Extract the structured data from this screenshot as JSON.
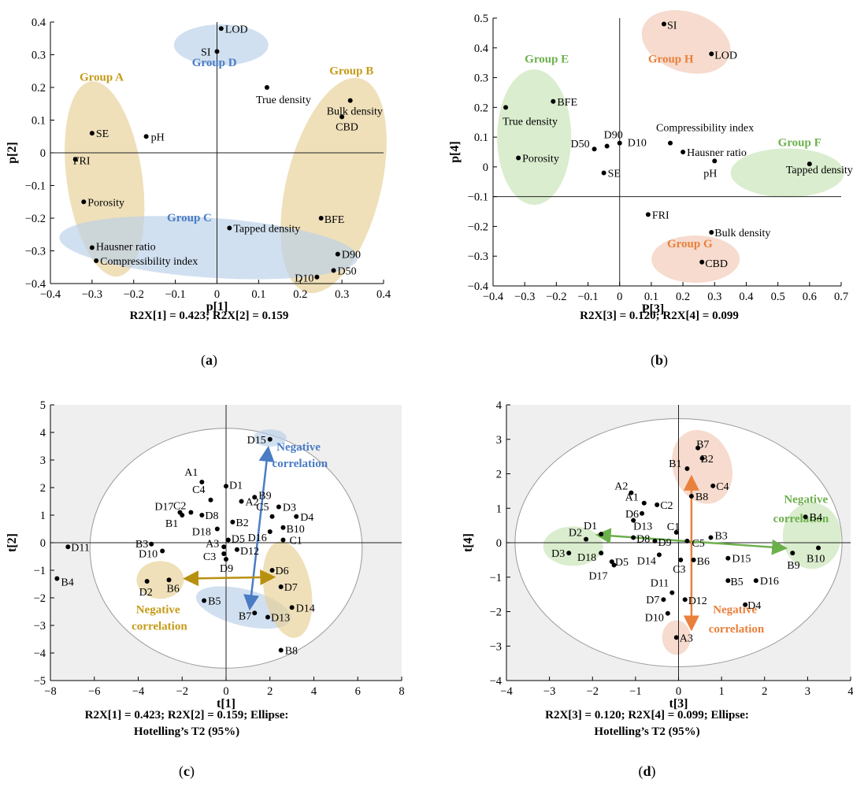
{
  "colors": {
    "tan": "#e6cf95",
    "tan_text": "#c59a17",
    "tan_arrow": "#b8900f",
    "blue": "#b9cfe8",
    "blue_text": "#4a7cc4",
    "blue_arrow": "#4a7cc4",
    "green": "#c6e3b4",
    "green_text": "#6cb04c",
    "green_arrow": "#6cb04c",
    "orange": "#f1c7b4",
    "orange_text": "#e9803c",
    "orange_arrow": "#e9803c",
    "shade": "#efefef"
  },
  "chart_data": [
    {
      "panel": "a",
      "type": "scatter",
      "xlabel": "p[1]",
      "ylabel": "p[2]",
      "xlim": [
        -0.4,
        0.4
      ],
      "ylim": [
        -0.4,
        0.4
      ],
      "xticks": [
        "−0.4",
        "−0.3",
        "−0.2",
        "−0.1",
        "0",
        "0.1",
        "0.2",
        "0.3",
        "0.4"
      ],
      "yticks": [
        "−0.4",
        "−0.3",
        "−0.2",
        "−0.1",
        "0",
        "0.1",
        "0.2",
        "0.3",
        "0.4"
      ],
      "caption": "R2X[1] = 0.423; R2X[2] = 0.159",
      "sublabel": "a",
      "points": [
        {
          "label": "LOD",
          "x": 0.01,
          "y": 0.38
        },
        {
          "label": "SI",
          "x": 0.0,
          "y": 0.31
        },
        {
          "label": "True density",
          "x": 0.12,
          "y": 0.2
        },
        {
          "label": "Bulk density",
          "x": 0.32,
          "y": 0.16
        },
        {
          "label": "CBD",
          "x": 0.3,
          "y": 0.11
        },
        {
          "label": "SE",
          "x": -0.3,
          "y": 0.06
        },
        {
          "label": "pH",
          "x": -0.17,
          "y": 0.05
        },
        {
          "label": "FRI",
          "x": -0.34,
          "y": -0.02
        },
        {
          "label": "Porosity",
          "x": -0.32,
          "y": -0.15
        },
        {
          "label": "BFE",
          "x": 0.25,
          "y": -0.2
        },
        {
          "label": "Tapped density",
          "x": 0.03,
          "y": -0.23
        },
        {
          "label": "Hausner ratio",
          "x": -0.3,
          "y": -0.29
        },
        {
          "label": "Compressibility index",
          "x": -0.29,
          "y": -0.33
        },
        {
          "label": "D90",
          "x": 0.29,
          "y": -0.31
        },
        {
          "label": "D50",
          "x": 0.28,
          "y": -0.36
        },
        {
          "label": "D10",
          "x": 0.24,
          "y": -0.38
        }
      ],
      "groups": [
        {
          "name": "Group A",
          "color": "tan"
        },
        {
          "name": "Group B",
          "color": "tan"
        },
        {
          "name": "Group C",
          "color": "blue"
        },
        {
          "name": "Group D",
          "color": "blue"
        }
      ]
    },
    {
      "panel": "b",
      "type": "scatter",
      "xlabel": "P[3]",
      "ylabel": "p[4]",
      "xlim": [
        -0.4,
        0.7
      ],
      "ylim": [
        -0.4,
        0.5
      ],
      "xticks": [
        "−0.4",
        "−0.3",
        "−0.2",
        "−0.1",
        "0",
        "0.1",
        "0.2",
        "0.3",
        "0.4",
        "0.5",
        "0.6",
        "0.7"
      ],
      "yticks": [
        "−0.4",
        "−0.3",
        "−0.2",
        "−0.1",
        "0",
        "0.1",
        "0.2",
        "0.3",
        "0.4",
        "0.5"
      ],
      "caption": "R2X[3] = 0.120; R2X[4] = 0.099",
      "sublabel": "b",
      "points": [
        {
          "label": "SI",
          "x": 0.14,
          "y": 0.48
        },
        {
          "label": "LOD",
          "x": 0.29,
          "y": 0.38
        },
        {
          "label": "BFE",
          "x": -0.21,
          "y": 0.22
        },
        {
          "label": "True density",
          "x": -0.36,
          "y": 0.2
        },
        {
          "label": "D90",
          "x": -0.04,
          "y": 0.07
        },
        {
          "label": "D50",
          "x": -0.08,
          "y": 0.06
        },
        {
          "label": "D10",
          "x": 0.0,
          "y": 0.08
        },
        {
          "label": "Compressibility index",
          "x": 0.16,
          "y": 0.08
        },
        {
          "label": "Hausner ratio",
          "x": 0.2,
          "y": 0.05
        },
        {
          "label": "Porosity",
          "x": -0.32,
          "y": 0.03
        },
        {
          "label": "pH",
          "x": 0.3,
          "y": 0.02
        },
        {
          "label": "Tapped density",
          "x": 0.6,
          "y": 0.01
        },
        {
          "label": "SE",
          "x": -0.05,
          "y": -0.02
        },
        {
          "label": "FRI",
          "x": 0.09,
          "y": -0.16
        },
        {
          "label": "Bulk density",
          "x": 0.29,
          "y": -0.22
        },
        {
          "label": "CBD",
          "x": 0.26,
          "y": -0.32
        }
      ],
      "groups": [
        {
          "name": "Group E",
          "color": "green"
        },
        {
          "name": "Group F",
          "color": "green"
        },
        {
          "name": "Group G",
          "color": "orange"
        },
        {
          "name": "Group H",
          "color": "orange"
        }
      ]
    },
    {
      "panel": "c",
      "type": "scatter",
      "xlabel": "t[1]",
      "ylabel": "t[2]",
      "xlim": [
        -8,
        8
      ],
      "ylim": [
        -5,
        5
      ],
      "xticks": [
        "−8",
        "−6",
        "−4",
        "−2",
        "0",
        "2",
        "4",
        "6",
        "8"
      ],
      "yticks": [
        "−5",
        "−4",
        "−3",
        "−2",
        "−1",
        "0",
        "1",
        "2",
        "3",
        "4",
        "5"
      ],
      "caption": "R2X[1] = 0.423; R2X[2] = 0.159; Ellipse:",
      "caption2": "Hotelling’s T2 (95%)",
      "sublabel": "c",
      "annotations": [
        {
          "text": "Negative",
          "text2": "correlation",
          "color": "blue"
        },
        {
          "text": "Negative",
          "text2": "correlation",
          "color": "tan"
        }
      ],
      "points": [
        {
          "label": "D15",
          "x": 2.0,
          "y": 3.75
        },
        {
          "label": "A1",
          "x": -1.1,
          "y": 2.2
        },
        {
          "label": "D1",
          "x": 0.0,
          "y": 2.05
        },
        {
          "label": "C4",
          "x": -0.7,
          "y": 1.55
        },
        {
          "label": "B9",
          "x": 1.3,
          "y": 1.65
        },
        {
          "label": "A2",
          "x": 0.7,
          "y": 1.5
        },
        {
          "label": "D3",
          "x": 2.4,
          "y": 1.3
        },
        {
          "label": "C2",
          "x": -1.6,
          "y": 1.1
        },
        {
          "label": "D17",
          "x": -2.1,
          "y": 1.1
        },
        {
          "label": "D8",
          "x": -1.1,
          "y": 1.0
        },
        {
          "label": "C5",
          "x": 2.1,
          "y": 0.95
        },
        {
          "label": "D4",
          "x": 3.2,
          "y": 0.95
        },
        {
          "label": "B1",
          "x": -2.0,
          "y": 1.0
        },
        {
          "label": "B2",
          "x": 0.3,
          "y": 0.75
        },
        {
          "label": "B10",
          "x": 2.6,
          "y": 0.55
        },
        {
          "label": "D18",
          "x": -0.4,
          "y": 0.5
        },
        {
          "label": "D16",
          "x": 2.0,
          "y": 0.4
        },
        {
          "label": "D5",
          "x": 0.1,
          "y": 0.1
        },
        {
          "label": "C1",
          "x": 2.6,
          "y": 0.1
        },
        {
          "label": "B3",
          "x": -3.4,
          "y": -0.05
        },
        {
          "label": "A3",
          "x": -0.1,
          "y": -0.15
        },
        {
          "label": "D12",
          "x": 0.5,
          "y": -0.25
        },
        {
          "label": "D10",
          "x": -2.9,
          "y": -0.3
        },
        {
          "label": "C3",
          "x": -0.1,
          "y": -0.4
        },
        {
          "label": "D9",
          "x": 0.0,
          "y": -0.6
        },
        {
          "label": "D11",
          "x": -7.2,
          "y": -0.15
        },
        {
          "label": "B4",
          "x": -7.7,
          "y": -1.3
        },
        {
          "label": "D6",
          "x": 2.1,
          "y": -1.0
        },
        {
          "label": "D2",
          "x": -3.6,
          "y": -1.4
        },
        {
          "label": "B6",
          "x": -2.6,
          "y": -1.35
        },
        {
          "label": "D7",
          "x": 2.5,
          "y": -1.6
        },
        {
          "label": "B5",
          "x": -1.0,
          "y": -2.1
        },
        {
          "label": "D14",
          "x": 3.0,
          "y": -2.35
        },
        {
          "label": "B7",
          "x": 1.3,
          "y": -2.55
        },
        {
          "label": "D13",
          "x": 1.9,
          "y": -2.7
        },
        {
          "label": "B8",
          "x": 2.5,
          "y": -3.9
        }
      ]
    },
    {
      "panel": "d",
      "type": "scatter",
      "xlabel": "t[3]",
      "ylabel": "t[4]",
      "xlim": [
        -4,
        4
      ],
      "ylim": [
        -4,
        4
      ],
      "xticks": [
        "−4",
        "−3",
        "−2",
        "−1",
        "0",
        "1",
        "2",
        "3",
        "4"
      ],
      "yticks": [
        "−4",
        "−3",
        "−2",
        "−1",
        "0",
        "1",
        "2",
        "3",
        "4"
      ],
      "caption": "R2X[3] = 0.120; R2X[4] = 0.099; Ellipse:",
      "caption2": "Hotelling’s T2 (95%)",
      "sublabel": "d",
      "annotations": [
        {
          "text": "Negative",
          "text2": "correlation",
          "color": "green"
        },
        {
          "text": "Negative",
          "text2": "correlation",
          "color": "orange"
        }
      ],
      "points": [
        {
          "label": "B7",
          "x": 0.45,
          "y": 2.75
        },
        {
          "label": "B2",
          "x": 0.55,
          "y": 2.45
        },
        {
          "label": "B1",
          "x": 0.2,
          "y": 2.15
        },
        {
          "label": "C4",
          "x": 0.8,
          "y": 1.65
        },
        {
          "label": "B8",
          "x": 0.3,
          "y": 1.35
        },
        {
          "label": "A2",
          "x": -1.1,
          "y": 1.45
        },
        {
          "label": "A1",
          "x": -0.8,
          "y": 1.15
        },
        {
          "label": "C2",
          "x": -0.5,
          "y": 1.1
        },
        {
          "label": "D6",
          "x": -0.85,
          "y": 0.85
        },
        {
          "label": "D13",
          "x": -1.05,
          "y": 0.65
        },
        {
          "label": "B4",
          "x": 2.95,
          "y": 0.75
        },
        {
          "label": "C1",
          "x": -0.05,
          "y": 0.3
        },
        {
          "label": "D1",
          "x": -1.8,
          "y": 0.25
        },
        {
          "label": "B3",
          "x": 0.75,
          "y": 0.15
        },
        {
          "label": "D2",
          "x": -2.15,
          "y": 0.1
        },
        {
          "label": "D8",
          "x": -1.05,
          "y": 0.15
        },
        {
          "label": "D9",
          "x": -0.55,
          "y": 0.05
        },
        {
          "label": "C5",
          "x": 0.2,
          "y": 0.05
        },
        {
          "label": "D3",
          "x": -2.55,
          "y": -0.3
        },
        {
          "label": "D18",
          "x": -1.8,
          "y": -0.3
        },
        {
          "label": "B9",
          "x": 2.65,
          "y": -0.3
        },
        {
          "label": "B10",
          "x": 3.25,
          "y": -0.15
        },
        {
          "label": "D14",
          "x": -0.45,
          "y": -0.35
        },
        {
          "label": "D5",
          "x": -1.55,
          "y": -0.55
        },
        {
          "label": "C3",
          "x": 0.05,
          "y": -0.5
        },
        {
          "label": "B6",
          "x": 0.35,
          "y": -0.5
        },
        {
          "label": "D15",
          "x": 1.15,
          "y": -0.45
        },
        {
          "label": "D17",
          "x": -1.5,
          "y": -0.65
        },
        {
          "label": "D11",
          "x": -0.15,
          "y": -1.45
        },
        {
          "label": "D7",
          "x": -0.35,
          "y": -1.65
        },
        {
          "label": "D12",
          "x": 0.15,
          "y": -1.65
        },
        {
          "label": "B5",
          "x": 1.15,
          "y": -1.1
        },
        {
          "label": "D16",
          "x": 1.8,
          "y": -1.1
        },
        {
          "label": "D4",
          "x": 1.55,
          "y": -1.8
        },
        {
          "label": "D10",
          "x": -0.25,
          "y": -2.05
        },
        {
          "label": "A3",
          "x": -0.05,
          "y": -2.75
        }
      ]
    }
  ]
}
